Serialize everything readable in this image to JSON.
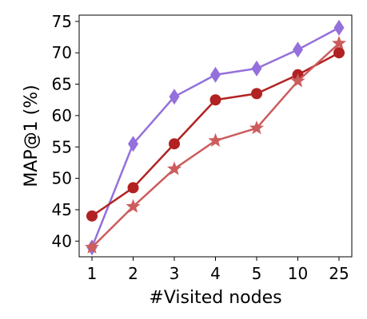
{
  "chart_data": {
    "type": "line",
    "xlabel": "#Visited nodes",
    "ylabel": "MAP@1 (%)",
    "categories": [
      "1",
      "2",
      "3",
      "4",
      "5",
      "10",
      "25"
    ],
    "ylim": [
      37.5,
      76
    ],
    "yticks": [
      40,
      45,
      50,
      55,
      60,
      65,
      70,
      75
    ],
    "grid": false,
    "legend": "none",
    "series": [
      {
        "values": [
          39,
          55.5,
          63,
          66.5,
          67.5,
          70.5,
          74
        ],
        "color": "#9370DB",
        "marker": "diamond"
      },
      {
        "values": [
          44,
          48.5,
          55.5,
          62.5,
          63.5,
          66.5,
          70
        ],
        "color": "#B22222",
        "marker": "circle"
      },
      {
        "values": [
          39,
          45.5,
          51.5,
          56,
          58,
          65.5,
          71.5
        ],
        "color": "#CD5C5C",
        "marker": "star"
      }
    ]
  }
}
